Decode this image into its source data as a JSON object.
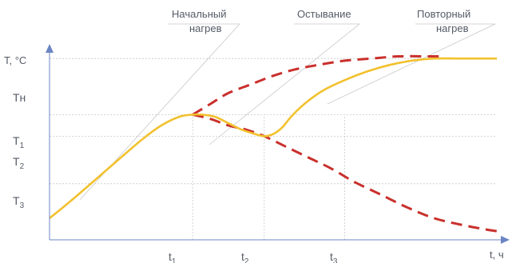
{
  "chart_data": {
    "type": "line",
    "title": "",
    "xlabel": "t, ч",
    "ylabel": "T, °C",
    "grid": false,
    "legend": "none",
    "y_ticks": [
      {
        "key": "Tn",
        "base": "Tн",
        "sub": "",
        "value": 0.84
      },
      {
        "key": "T1",
        "base": "T",
        "sub": "1",
        "value": 0.58
      },
      {
        "key": "T2",
        "base": "T",
        "sub": "2",
        "value": 0.48
      },
      {
        "key": "T3",
        "base": "T",
        "sub": "3",
        "value": 0.26
      }
    ],
    "x_ticks": [
      {
        "key": "t1",
        "base": "t",
        "sub": "1",
        "value": 0.32
      },
      {
        "key": "t2",
        "base": "t",
        "sub": "2",
        "value": 0.48
      },
      {
        "key": "t3",
        "base": "t",
        "sub": "3",
        "value": 0.66
      }
    ],
    "annotations": [
      {
        "key": "initial",
        "line1": "Начальный",
        "line2": "нагрев"
      },
      {
        "key": "cooling",
        "line1": "Остывание",
        "line2": ""
      },
      {
        "key": "reheat",
        "line1": "Повторный",
        "line2": "нагрев"
      }
    ],
    "series": [
      {
        "key": "process",
        "style": "solid",
        "color": "#f2c12e",
        "x": [
          0.0,
          0.03,
          0.07,
          0.12,
          0.17,
          0.21,
          0.25,
          0.29,
          0.32,
          0.34,
          0.37,
          0.4,
          0.43,
          0.46,
          0.48,
          0.5,
          0.52,
          0.54,
          0.57,
          0.61,
          0.66,
          0.71,
          0.76,
          0.81,
          0.86,
          0.91,
          0.96,
          1.0
        ],
        "y": [
          0.1,
          0.15,
          0.22,
          0.31,
          0.4,
          0.47,
          0.53,
          0.57,
          0.58,
          0.58,
          0.57,
          0.54,
          0.51,
          0.49,
          0.48,
          0.49,
          0.52,
          0.57,
          0.63,
          0.69,
          0.74,
          0.78,
          0.81,
          0.83,
          0.84,
          0.84,
          0.84,
          0.84
        ]
      },
      {
        "key": "heating-limit",
        "style": "dashed",
        "color": "#c9302c",
        "x": [
          0.32,
          0.36,
          0.4,
          0.45,
          0.5,
          0.55,
          0.6,
          0.66,
          0.72,
          0.78,
          0.84,
          0.87
        ],
        "y": [
          0.58,
          0.63,
          0.68,
          0.72,
          0.76,
          0.79,
          0.81,
          0.83,
          0.84,
          0.85,
          0.85,
          0.85
        ]
      },
      {
        "key": "cooling-limit",
        "style": "dashed",
        "color": "#c9302c",
        "x": [
          0.32,
          0.36,
          0.4,
          0.44,
          0.48,
          0.53,
          0.58,
          0.63,
          0.68,
          0.74,
          0.8,
          0.86,
          0.92,
          0.97,
          1.0
        ],
        "y": [
          0.58,
          0.56,
          0.53,
          0.51,
          0.48,
          0.43,
          0.38,
          0.33,
          0.27,
          0.21,
          0.15,
          0.1,
          0.07,
          0.05,
          0.04
        ]
      }
    ]
  }
}
